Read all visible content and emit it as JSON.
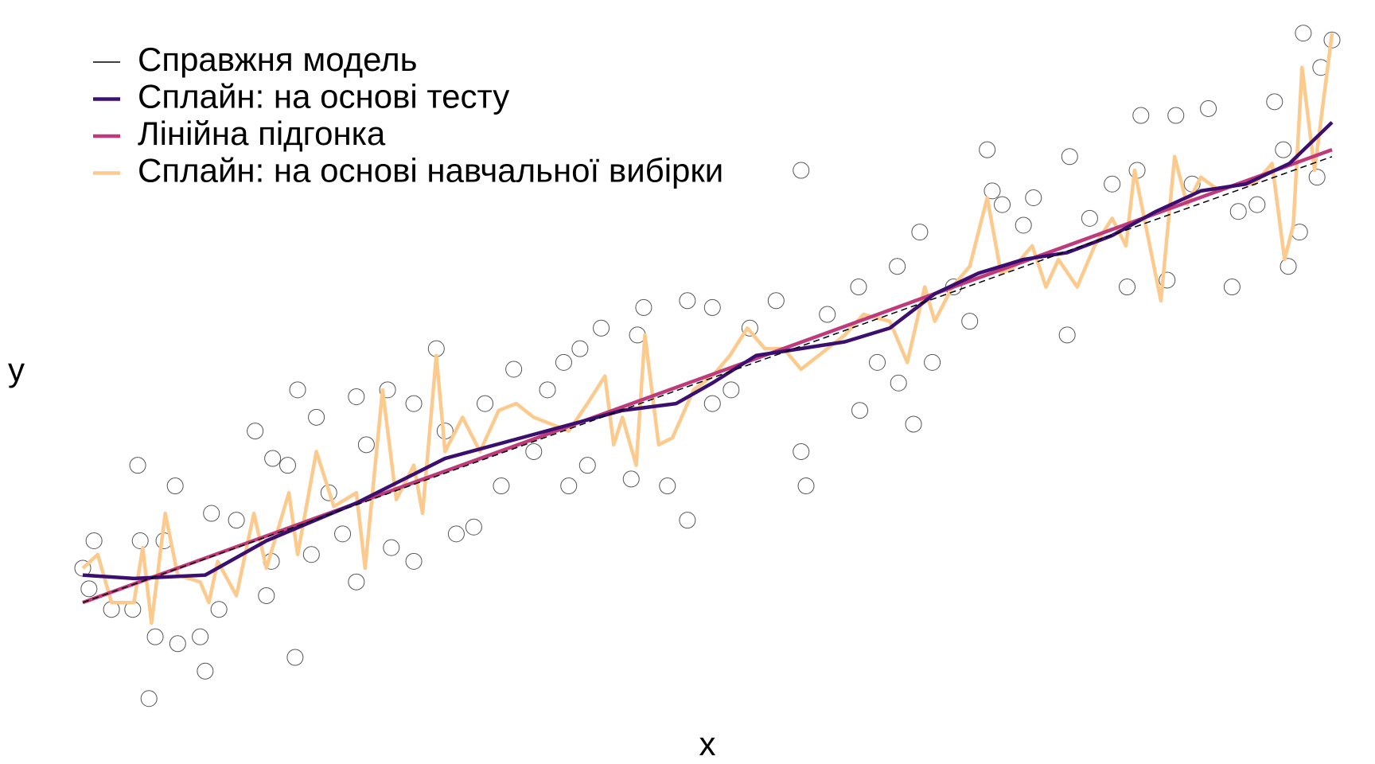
{
  "chart_data": {
    "type": "line",
    "x_label": "x",
    "y_label": "y",
    "xlim": [
      0,
      100
    ],
    "ylim": [
      0,
      100
    ],
    "points": {
      "type": "scatter",
      "color": "#555555",
      "x": [
        0,
        0.5,
        0.9,
        2.3,
        4,
        4.4,
        4.6,
        5.3,
        5.8,
        6.5,
        7.4,
        7.6,
        9.4,
        9.8,
        10.3,
        10.9,
        12.3,
        13.8,
        15.2,
        14.7,
        15.1,
        16.4,
        17,
        17.2,
        18.3,
        18.7,
        19.7,
        20.8,
        21.9,
        21.9,
        22.7,
        24.4,
        24.7,
        26.5,
        26.5,
        28.3,
        29,
        29.9,
        31.3,
        32.2,
        33.5,
        34.5,
        36.1,
        37.2,
        38.5,
        38.9,
        39.8,
        40.4,
        41.5,
        43.9,
        44.4,
        44.9,
        46.8,
        48.4,
        48.4,
        50.4,
        50.4,
        51.9,
        53.4,
        55.5,
        57.5,
        57.5,
        57.9,
        59.6,
        62.1,
        62.2,
        63.6,
        65.2,
        65.3,
        66.5,
        67,
        68,
        69.7,
        71,
        72.4,
        72.8,
        73.6,
        75.3,
        76.1,
        78.8,
        79,
        80.6,
        82.4,
        83.6,
        84.4,
        84.7,
        86.8,
        87.5,
        88.8,
        90.1,
        92,
        92.5,
        94,
        95.4,
        96.1,
        96.5,
        97.4,
        97.7,
        98.8,
        99.1,
        100
      ],
      "values": [
        21,
        18,
        25,
        15,
        15,
        36,
        25,
        2,
        11,
        25,
        33,
        10,
        11,
        6,
        29,
        15,
        28,
        41,
        37,
        17,
        22,
        36,
        8,
        47,
        23,
        43,
        32,
        26,
        46,
        19,
        39,
        47,
        24,
        45,
        22,
        53,
        41,
        26,
        27,
        45,
        33,
        50,
        38,
        47,
        51,
        33,
        53,
        36,
        56,
        34,
        55,
        59,
        33,
        60,
        28,
        59,
        45,
        47,
        56,
        60,
        79,
        38,
        33,
        58,
        62,
        44,
        51,
        65,
        48,
        42,
        70,
        51,
        62,
        57,
        82,
        76,
        74,
        71,
        75,
        55,
        81,
        72,
        77,
        62,
        79,
        87,
        63,
        87,
        77,
        88,
        62,
        73,
        74,
        89,
        82,
        65,
        70,
        99,
        78,
        94,
        98
      ]
    },
    "series": [
      {
        "name": "Справжня модель",
        "color": "#000000",
        "dashed": true,
        "x": [
          0,
          100
        ],
        "values": [
          16,
          81
        ]
      },
      {
        "name": "Сплайн: на основі тесту",
        "color": "#3b0f70",
        "x": [
          0,
          4.1,
          9.8,
          14.7,
          21.9,
          29,
          36.1,
          43.2,
          47.5,
          50.4,
          53.9,
          61,
          64.6,
          68.2,
          71.7,
          75.3,
          78.8,
          82.4,
          85.9,
          89.5,
          93.1,
          96.6,
          100
        ],
        "values": [
          20,
          19.5,
          20,
          25,
          30.5,
          37,
          40.5,
          44,
          45,
          48,
          52,
          54,
          56,
          61,
          64,
          66,
          67,
          69.5,
          73,
          76,
          77,
          80,
          86
        ]
      },
      {
        "name": "Лінійна підгонка",
        "color": "#c0397a",
        "x": [
          0,
          100
        ],
        "values": [
          16,
          82
        ]
      },
      {
        "name": "Сплайн: на основі навчальної вибірки",
        "color": "#fcca8c",
        "x": [
          0,
          1.2,
          2.3,
          4.1,
          4.8,
          5.5,
          6.6,
          7.6,
          9.4,
          10.1,
          10.8,
          12.3,
          13.7,
          14.7,
          16.5,
          17.2,
          18.7,
          20.1,
          21.9,
          22.6,
          24,
          25.1,
          26.5,
          27.2,
          28.3,
          29,
          30.4,
          31.8,
          33.3,
          34.7,
          36.1,
          37.5,
          38.9,
          40.4,
          41.8,
          42.5,
          43.2,
          44.3,
          45,
          46.1,
          47.2,
          48.9,
          50.4,
          51.8,
          53.2,
          54.6,
          56.1,
          57.5,
          59.6,
          61,
          62.5,
          64.6,
          66,
          67.4,
          68.2,
          69.6,
          71,
          72.4,
          73.5,
          74.6,
          76,
          77.1,
          78.1,
          79.6,
          81,
          82.4,
          83.5,
          84.2,
          85.3,
          86.3,
          87.4,
          88.4,
          89.5,
          91,
          92.4,
          93.8,
          95.2,
          96.2,
          96.9,
          97.6,
          98.6,
          99.3,
          100
        ],
        "values": [
          21,
          23,
          16,
          16,
          24,
          13,
          29,
          20,
          19,
          16,
          22,
          17,
          29,
          21,
          32,
          23,
          38,
          30,
          32,
          21,
          47,
          31,
          36,
          29,
          52,
          38,
          43,
          38,
          44,
          45,
          43,
          42,
          41,
          45,
          49,
          39,
          43,
          36,
          55,
          39,
          40,
          47,
          49,
          52,
          56,
          53,
          53,
          50,
          53,
          55,
          58,
          57,
          51,
          62,
          57,
          62,
          65,
          75,
          64,
          65,
          68,
          62,
          66,
          62,
          68,
          72,
          68,
          79,
          69,
          60,
          81,
          74,
          78,
          76,
          77,
          77,
          80,
          66,
          71,
          94,
          79,
          89,
          99
        ]
      }
    ]
  }
}
